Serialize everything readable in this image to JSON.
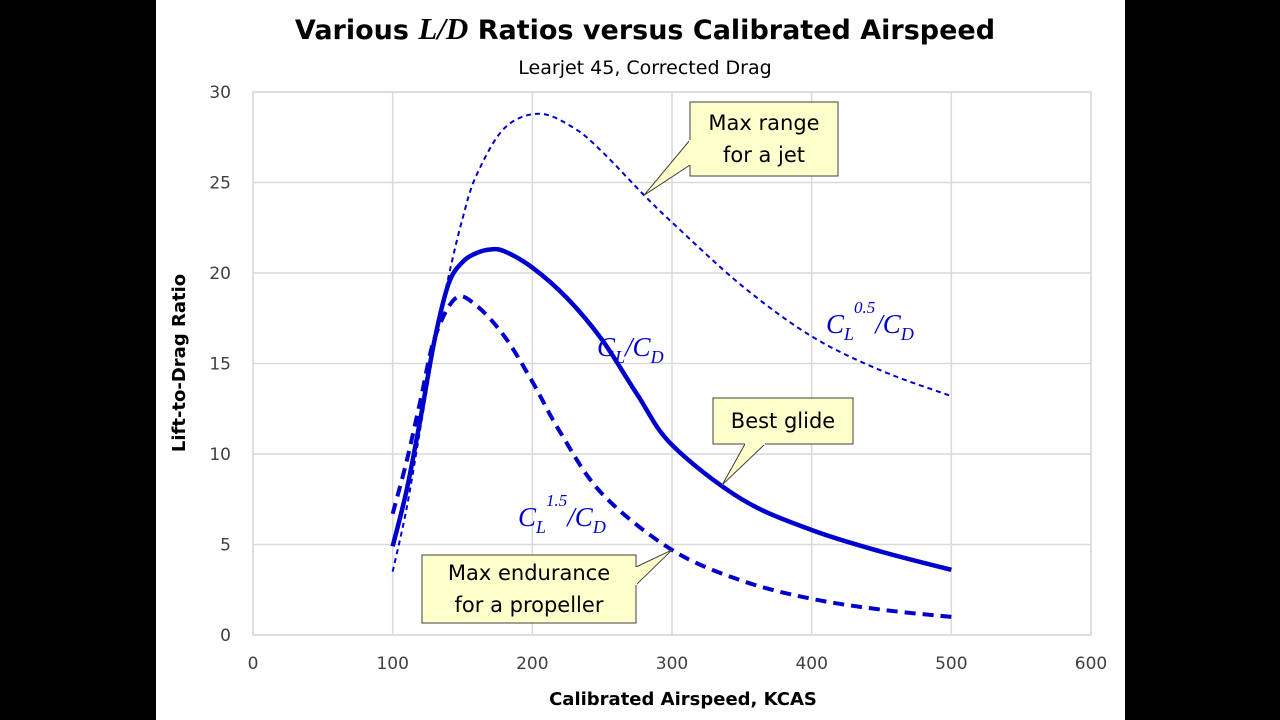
{
  "chart_data": {
    "type": "line",
    "title_prefix": "Various ",
    "title_math": "L/D",
    "title_suffix": " Ratios versus Calibrated Airspeed",
    "subtitle": "Learjet 45, Corrected Drag",
    "xlabel": "Calibrated Airspeed, KCAS",
    "ylabel": "Lift-to-Drag Ratio",
    "xlim": [
      0,
      600
    ],
    "ylim": [
      0,
      30
    ],
    "xticks": [
      0,
      100,
      200,
      300,
      400,
      500,
      600
    ],
    "yticks": [
      0,
      5,
      10,
      15,
      20,
      25,
      30
    ],
    "grid": true,
    "color": "#0000CC",
    "series": [
      {
        "name": "CL/CD",
        "label_base": "C",
        "label_sub": "L",
        "label_sup": "",
        "label_den_base": "C",
        "label_den_sub": "D",
        "style": "solid",
        "x": [
          100,
          110,
          120,
          130,
          140,
          150,
          160,
          170,
          180,
          200,
          225,
          250,
          275,
          300,
          350,
          400,
          450,
          500
        ],
        "y": [
          4.9,
          8,
          12,
          16.3,
          19.4,
          20.6,
          21.1,
          21.3,
          21.2,
          20.3,
          18.6,
          16.3,
          13.3,
          10.5,
          7.5,
          5.8,
          4.6,
          3.6
        ]
      },
      {
        "name": "CL^0.5/CD",
        "label_base": "C",
        "label_sub": "L",
        "label_sup": "0.5",
        "label_den_base": "C",
        "label_den_sub": "D",
        "style": "thin-dashed",
        "x": [
          100,
          110,
          120,
          130,
          140,
          150,
          160,
          180,
          205,
          230,
          250,
          280,
          300,
          350,
          400,
          450,
          500
        ],
        "y": [
          3.5,
          7,
          11.5,
          16,
          19.8,
          23,
          25.4,
          28,
          28.8,
          28,
          26.7,
          24.3,
          22.8,
          19.3,
          16.5,
          14.6,
          13.2
        ]
      },
      {
        "name": "CL^1.5/CD",
        "label_base": "C",
        "label_sub": "L",
        "label_sup": "1.5",
        "label_den_base": "C",
        "label_den_sub": "D",
        "style": "thick-dashed",
        "x": [
          100,
          110,
          120,
          130,
          145,
          160,
          180,
          200,
          220,
          250,
          300,
          350,
          400,
          450,
          500
        ],
        "y": [
          6.7,
          9.6,
          13,
          16.4,
          18.6,
          18.2,
          16.5,
          14,
          11.2,
          7.8,
          4.7,
          3.0,
          2.0,
          1.4,
          1.0
        ]
      }
    ],
    "annotations": [
      {
        "text_lines": [
          "Max range",
          "for a jet"
        ],
        "points_to": [
          280,
          24.3
        ]
      },
      {
        "text_lines": [
          "Best glide"
        ],
        "points_to": [
          336,
          8.3
        ]
      },
      {
        "text_lines": [
          "Max endurance",
          "for a propeller"
        ],
        "points_to": [
          300,
          4.7
        ]
      }
    ]
  }
}
